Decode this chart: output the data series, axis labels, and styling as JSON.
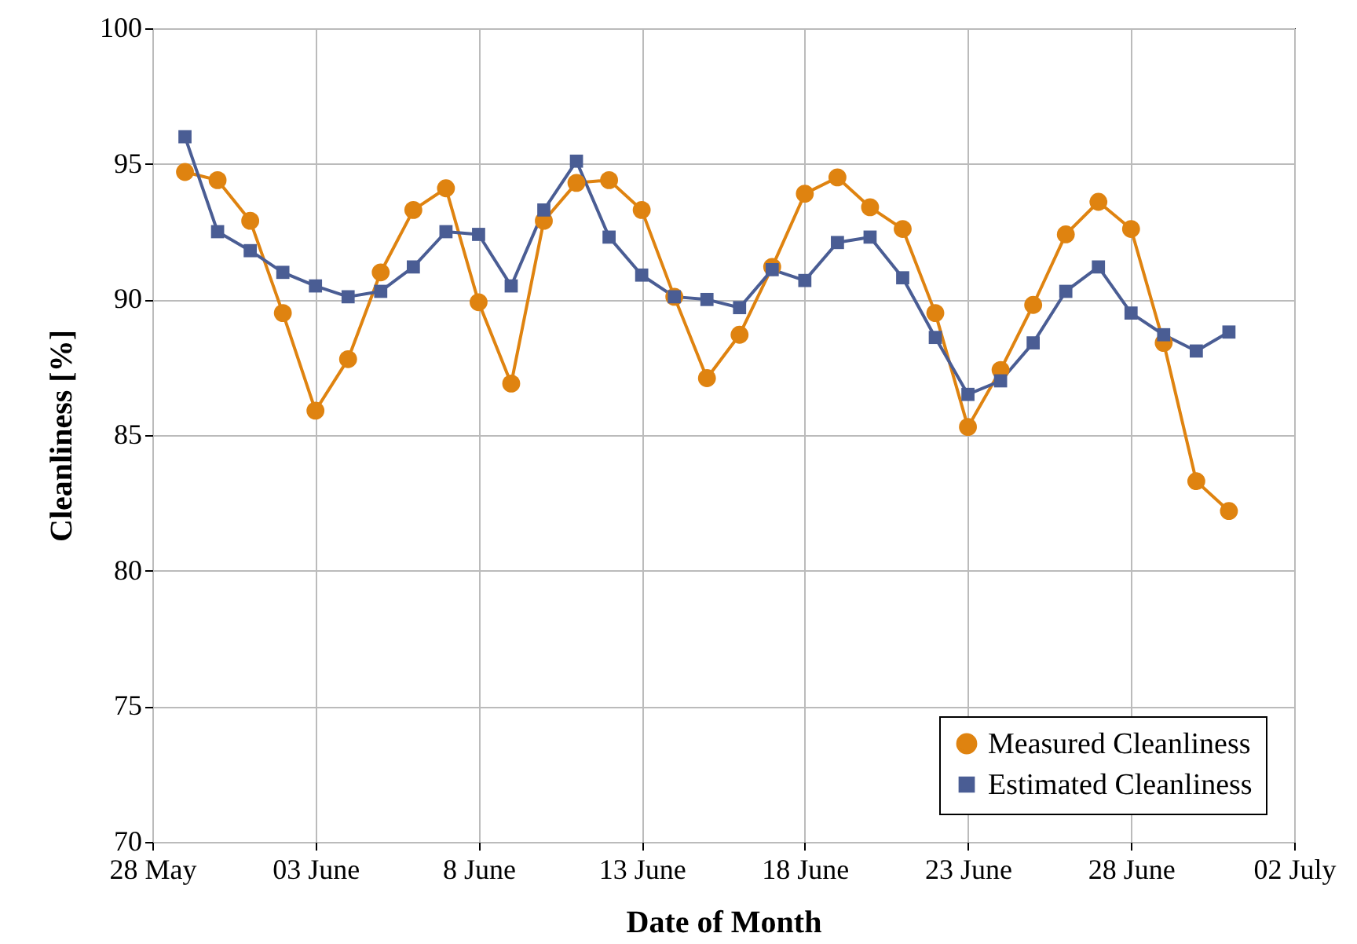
{
  "chart_data": {
    "type": "line",
    "xlabel": "Date of Month",
    "ylabel": "Cleanliness [%]",
    "categories": [
      "28 May",
      null,
      null,
      null,
      null,
      "03 June",
      null,
      null,
      null,
      null,
      "8 June",
      null,
      null,
      null,
      null,
      "13 June",
      null,
      null,
      null,
      null,
      "18 June",
      null,
      null,
      null,
      null,
      "23 June",
      null,
      null,
      null,
      null,
      "28 June",
      null,
      null,
      null,
      null,
      "02 July"
    ],
    "series": [
      {
        "name": "Measured Cleanliness",
        "color": "#df8310",
        "marker": "circle",
        "values": [
          null,
          94.7,
          94.4,
          92.9,
          89.5,
          85.9,
          87.8,
          91.0,
          93.3,
          94.1,
          89.9,
          86.9,
          92.9,
          94.3,
          94.4,
          93.3,
          90.1,
          87.1,
          88.7,
          91.2,
          93.9,
          94.5,
          93.4,
          92.6,
          89.5,
          85.3,
          87.4,
          89.8,
          92.4,
          93.6,
          92.6,
          88.4,
          83.3,
          82.2,
          null,
          null
        ]
      },
      {
        "name": "Estimated Cleanliness",
        "color": "#4a5d94",
        "marker": "square",
        "values": [
          null,
          96.0,
          92.5,
          91.8,
          91.0,
          90.5,
          90.1,
          90.3,
          91.2,
          92.5,
          92.4,
          90.5,
          93.3,
          95.1,
          92.3,
          90.9,
          90.1,
          90.0,
          89.7,
          91.1,
          90.7,
          92.1,
          92.3,
          90.8,
          88.6,
          86.5,
          87.0,
          88.4,
          90.3,
          91.2,
          89.5,
          88.7,
          88.1,
          88.8,
          null,
          null
        ]
      }
    ],
    "ylim": [
      70,
      100
    ],
    "yticks": [
      70,
      75,
      80,
      85,
      90,
      95,
      100
    ],
    "grid": true,
    "legend": "bottom right",
    "line_style": "solid"
  }
}
